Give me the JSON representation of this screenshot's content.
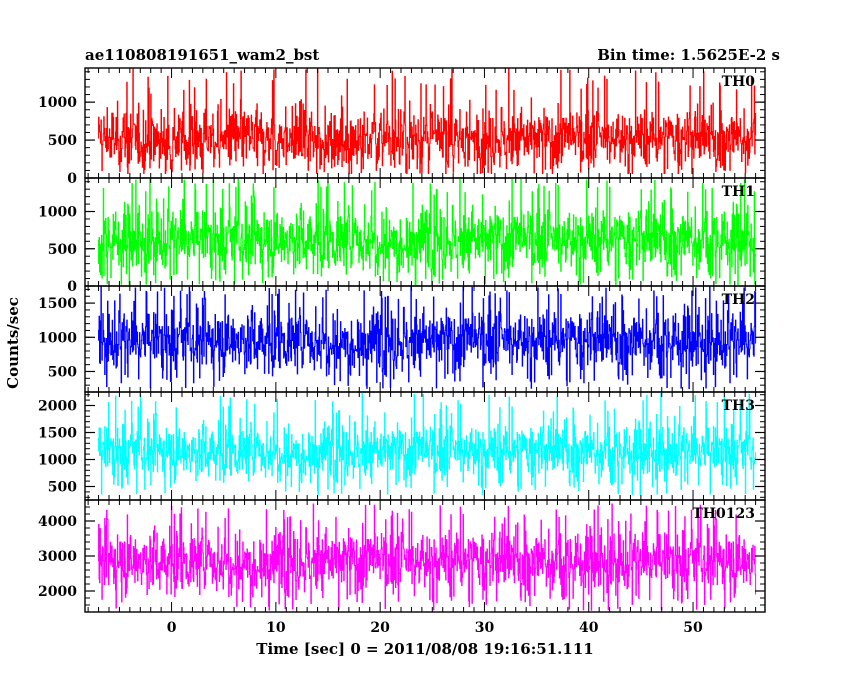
{
  "header": {
    "title_left": "ae110808191651_wam2_bst",
    "title_right": "Bin time: 1.5625E-2 s"
  },
  "axes": {
    "ylabel": "Counts/sec",
    "xlabel": "Time [sec] 0 = 2011/08/08 19:16:51.111",
    "xlim": [
      -8.3,
      56.9
    ],
    "x_ticks": [
      0,
      10,
      20,
      30,
      40,
      50
    ],
    "x_tick_labels": [
      "0",
      "10",
      "20",
      "30",
      "40",
      "50"
    ],
    "data_x_range": [
      -7.0,
      56.0
    ]
  },
  "chart_data": [
    {
      "type": "line",
      "series": [
        {
          "name": "TH0",
          "color": "#ff0000"
        }
      ],
      "ylim": [
        0,
        1450
      ],
      "y_ticks": [
        0,
        500,
        1000
      ],
      "y_tick_labels": [
        "0",
        "500",
        "1000"
      ],
      "noise": {
        "mean": 520,
        "min": 60,
        "typical_max": 1150,
        "peak_max": 1450
      }
    },
    {
      "type": "line",
      "series": [
        {
          "name": "TH1",
          "color": "#00ff00"
        }
      ],
      "ylim": [
        0,
        1450
      ],
      "y_ticks": [
        0,
        500,
        1000
      ],
      "y_tick_labels": [
        "0",
        "500",
        "1000"
      ],
      "noise": {
        "mean": 620,
        "min": 20,
        "typical_max": 1250,
        "peak_max": 1450
      }
    },
    {
      "type": "line",
      "series": [
        {
          "name": "TH2",
          "color": "#0000ff"
        }
      ],
      "ylim": [
        200,
        1750
      ],
      "y_ticks": [
        500,
        1000,
        1500
      ],
      "y_tick_labels": [
        "500",
        "1000",
        "1500"
      ],
      "noise": {
        "mean": 950,
        "min": 250,
        "typical_max": 1550,
        "peak_max": 1750
      }
    },
    {
      "type": "line",
      "series": [
        {
          "name": "TH3",
          "color": "#00ffff"
        }
      ],
      "ylim": [
        250,
        2250
      ],
      "y_ticks": [
        500,
        1000,
        1500,
        2000
      ],
      "y_tick_labels": [
        "500",
        "1000",
        "1500",
        "2000"
      ],
      "noise": {
        "mean": 1150,
        "min": 350,
        "typical_max": 1800,
        "peak_max": 2250
      }
    },
    {
      "type": "line",
      "series": [
        {
          "name": "TH0123",
          "color": "#ff00ff"
        }
      ],
      "ylim": [
        1400,
        4600
      ],
      "y_ticks": [
        2000,
        3000,
        4000
      ],
      "y_tick_labels": [
        "2000",
        "3000",
        "4000"
      ],
      "noise": {
        "mean": 2850,
        "min": 1450,
        "typical_max": 4000,
        "peak_max": 4500
      }
    }
  ]
}
